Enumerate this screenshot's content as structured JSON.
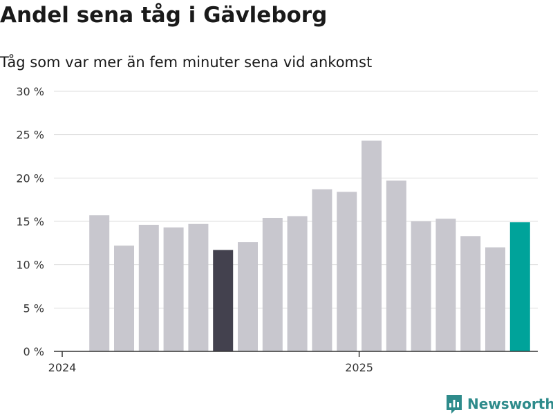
{
  "header": {
    "title": "Andel sena tåg i Gävleborg",
    "subtitle": "Tåg som var mer än fem minuter sena vid ankomst"
  },
  "brand": {
    "name": "Newsworthy",
    "logo_icon": "bar-chart-speech-bubble-icon",
    "color": "#2e8b8b"
  },
  "colors": {
    "default_bar": "#c8c7ce",
    "highlight_dark": "#43414e",
    "highlight_latest": "#00a39a"
  },
  "chart_data": {
    "type": "bar",
    "title": "Andel sena tåg i Gävleborg",
    "subtitle": "Tåg som var mer än fem minuter sena vid ankomst",
    "xlabel": "",
    "ylabel": "",
    "ylim": [
      0,
      30
    ],
    "yticks": [
      0,
      5,
      10,
      15,
      20,
      25,
      30
    ],
    "ytick_labels": [
      "0 %",
      "5 %",
      "10 %",
      "15 %",
      "20 %",
      "25 %",
      "30 %"
    ],
    "x_year_labels": [
      {
        "label": "2024",
        "month": "2024-01"
      },
      {
        "label": "2025",
        "month": "2025-01"
      }
    ],
    "grid": true,
    "categories": [
      "2024-02",
      "2024-03",
      "2024-04",
      "2024-05",
      "2024-06",
      "2024-07",
      "2024-08",
      "2024-09",
      "2024-10",
      "2024-11",
      "2024-12",
      "2025-01",
      "2025-02",
      "2025-03",
      "2025-04",
      "2025-05",
      "2025-06",
      "2025-07"
    ],
    "values": [
      15.7,
      12.2,
      14.6,
      14.3,
      14.7,
      11.7,
      12.6,
      15.4,
      15.6,
      18.7,
      18.4,
      24.3,
      19.7,
      15.0,
      15.3,
      13.3,
      12.0,
      14.9
    ],
    "bar_colors": [
      "#c8c7ce",
      "#c8c7ce",
      "#c8c7ce",
      "#c8c7ce",
      "#c8c7ce",
      "#43414e",
      "#c8c7ce",
      "#c8c7ce",
      "#c8c7ce",
      "#c8c7ce",
      "#c8c7ce",
      "#c8c7ce",
      "#c8c7ce",
      "#c8c7ce",
      "#c8c7ce",
      "#c8c7ce",
      "#c8c7ce",
      "#00a39a"
    ]
  }
}
